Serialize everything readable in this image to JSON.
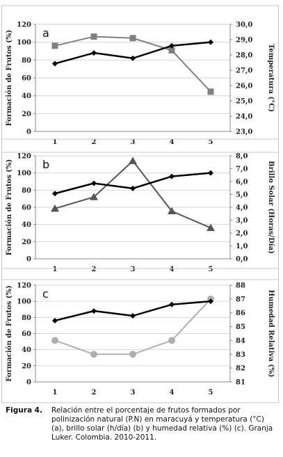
{
  "chart_data": [
    {
      "type": "line",
      "panel_label": "a",
      "categories": [
        "1",
        "2",
        "3",
        "4",
        "5"
      ],
      "ylabel": "Formación de Frutos (%)",
      "ylim": [
        0,
        120
      ],
      "yticks": [
        "0",
        "20",
        "40",
        "60",
        "80",
        "100",
        "120"
      ],
      "y2label": "Temperatura (°C)",
      "y2lim": [
        23,
        30
      ],
      "y2ticks": [
        "23,0",
        "24,0",
        "25,0",
        "26,0",
        "27,0",
        "28,0",
        "29,0",
        "30,0"
      ],
      "grid": true,
      "series": [
        {
          "axis": "left",
          "values": [
            76,
            88,
            82,
            96,
            100
          ],
          "color": "#000000",
          "marker": "diamond"
        },
        {
          "axis": "right",
          "values": [
            28.6,
            29.2,
            29.1,
            28.3,
            25.6
          ],
          "color": "#808080",
          "marker": "square"
        }
      ]
    },
    {
      "type": "line",
      "panel_label": "b",
      "categories": [
        "1",
        "2",
        "3",
        "4",
        "5"
      ],
      "ylabel": "Formación de Frutos (%)",
      "ylim": [
        0,
        120
      ],
      "yticks": [
        "0",
        "20",
        "40",
        "60",
        "80",
        "100",
        "120"
      ],
      "y2label": "Brillo Solar (Horas/Día)",
      "y2lim": [
        0,
        8
      ],
      "y2ticks": [
        "0,0",
        "1,0",
        "2,0",
        "3,0",
        "4,0",
        "5,0",
        "6,0",
        "7,0",
        "8,0"
      ],
      "grid": true,
      "series": [
        {
          "axis": "left",
          "values": [
            76,
            88,
            82,
            96,
            100
          ],
          "color": "#000000",
          "marker": "diamond"
        },
        {
          "axis": "right",
          "values": [
            3.9,
            4.8,
            7.6,
            3.7,
            2.4
          ],
          "color": "#555555",
          "marker": "triangle"
        }
      ]
    },
    {
      "type": "line",
      "panel_label": "c",
      "categories": [
        "1",
        "2",
        "3",
        "4",
        "5"
      ],
      "ylabel": "Formación de Frutos (%)",
      "ylim": [
        0,
        120
      ],
      "yticks": [
        "0",
        "20",
        "40",
        "60",
        "80",
        "100",
        "120"
      ],
      "y2label": "Humedad Relativa (%)",
      "y2lim": [
        81,
        88
      ],
      "y2ticks": [
        "81",
        "82",
        "83",
        "84",
        "85",
        "86",
        "87",
        "88"
      ],
      "grid": true,
      "series": [
        {
          "axis": "left",
          "values": [
            76,
            88,
            82,
            96,
            100
          ],
          "color": "#000000",
          "marker": "diamond"
        },
        {
          "axis": "right",
          "values": [
            84,
            83,
            83,
            84,
            87
          ],
          "color": "#b0b0b0",
          "marker": "circle"
        }
      ]
    }
  ],
  "caption": {
    "label": "Figura 4.",
    "text": "Relación entre el porcentaje de frutos formados por polinización natural (P.N) en maracuyá y temperatura (°C) (a), brillo solar (h/día) (b) y humedad relativa (%) (c). Granja Luker. Colombia. 2010-2011."
  }
}
